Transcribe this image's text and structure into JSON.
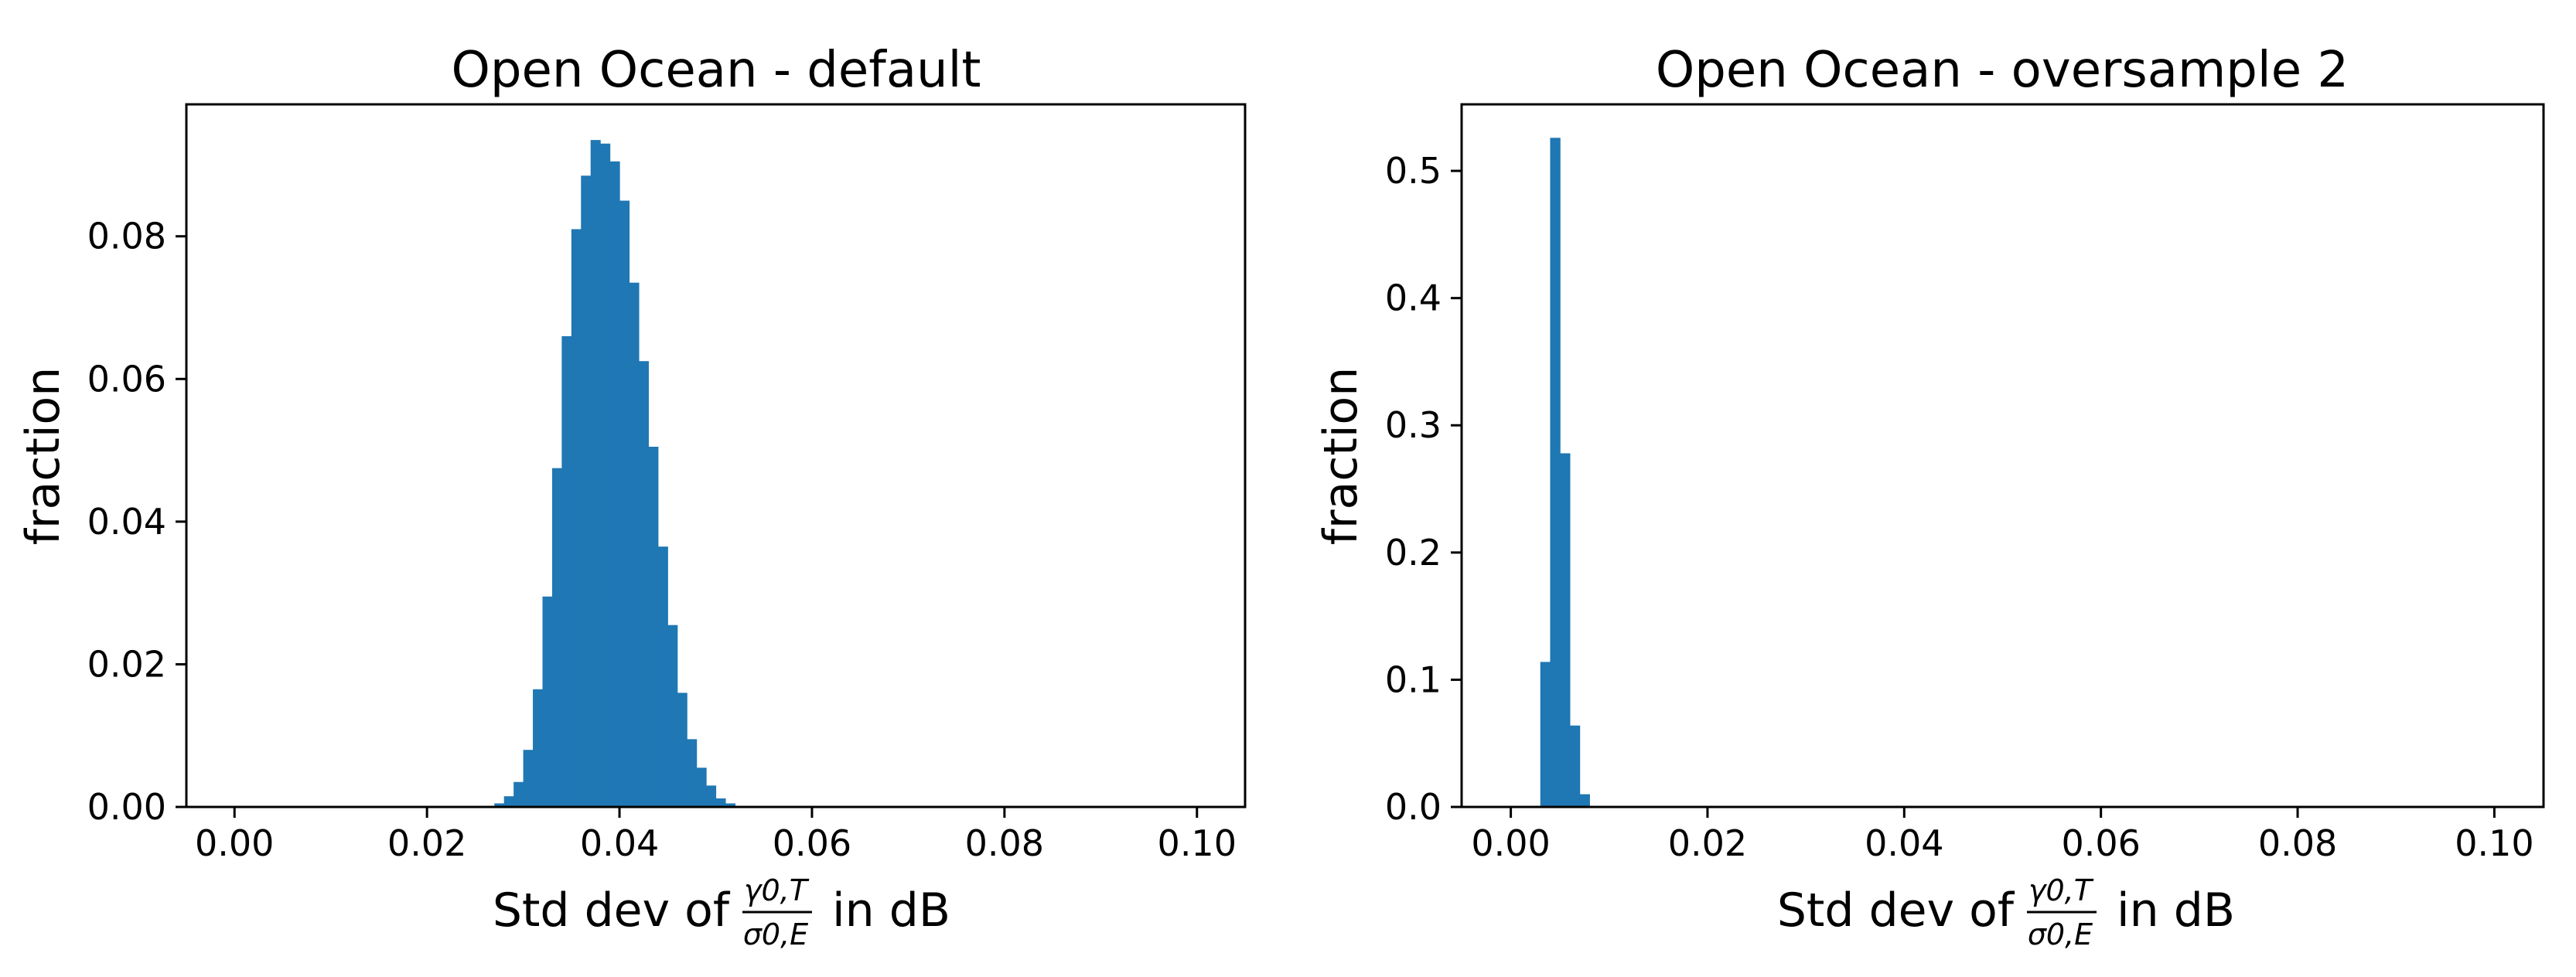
{
  "chart_data": [
    {
      "type": "bar",
      "title": "Open Ocean - default",
      "xlabel": "Std dev of",
      "xlabel_fraction": {
        "numerator": "γ0,T",
        "denominator": "σ0,E"
      },
      "xlabel_suffix": "in dB",
      "ylabel": "fraction",
      "xlim": [
        -0.005,
        0.105
      ],
      "ylim": [
        0,
        0.0985
      ],
      "xticks": [
        "0.00",
        "0.02",
        "0.04",
        "0.06",
        "0.08",
        "0.10"
      ],
      "xtick_values": [
        0,
        0.02,
        0.04,
        0.06,
        0.08,
        0.1
      ],
      "yticks": [
        "0.00",
        "0.02",
        "0.04",
        "0.06",
        "0.08"
      ],
      "ytick_values": [
        0,
        0.02,
        0.04,
        0.06,
        0.08
      ],
      "bin_width": 0.001,
      "bin_starts": [
        0.027,
        0.028,
        0.029,
        0.03,
        0.031,
        0.032,
        0.033,
        0.034,
        0.035,
        0.036,
        0.037,
        0.038,
        0.039,
        0.04,
        0.041,
        0.042,
        0.043,
        0.044,
        0.045,
        0.046,
        0.047,
        0.048,
        0.049,
        0.05,
        0.051
      ],
      "values": [
        0.0005,
        0.0015,
        0.0035,
        0.008,
        0.0165,
        0.0295,
        0.0475,
        0.066,
        0.081,
        0.0885,
        0.0935,
        0.093,
        0.0905,
        0.085,
        0.0735,
        0.0625,
        0.0505,
        0.0365,
        0.0255,
        0.016,
        0.0095,
        0.0055,
        0.003,
        0.0012,
        0.0005
      ],
      "color": "#1f77b4",
      "grid": false
    },
    {
      "type": "bar",
      "title": "Open Ocean - oversample 2",
      "xlabel": "Std dev of",
      "xlabel_fraction": {
        "numerator": "γ0,T",
        "denominator": "σ0,E"
      },
      "xlabel_suffix": "in dB",
      "ylabel": "fraction",
      "xlim": [
        -0.005,
        0.105
      ],
      "ylim": [
        0,
        0.5523
      ],
      "xticks": [
        "0.00",
        "0.02",
        "0.04",
        "0.06",
        "0.08",
        "0.10"
      ],
      "xtick_values": [
        0,
        0.02,
        0.04,
        0.06,
        0.08,
        0.1
      ],
      "yticks": [
        "0.0",
        "0.1",
        "0.2",
        "0.3",
        "0.4",
        "0.5"
      ],
      "ytick_values": [
        0,
        0.1,
        0.2,
        0.3,
        0.4,
        0.5
      ],
      "bin_width": 0.001,
      "bin_starts": [
        0.003,
        0.004,
        0.005,
        0.006,
        0.007
      ],
      "values": [
        0.114,
        0.526,
        0.278,
        0.064,
        0.01
      ],
      "color": "#1f77b4",
      "grid": false
    }
  ]
}
